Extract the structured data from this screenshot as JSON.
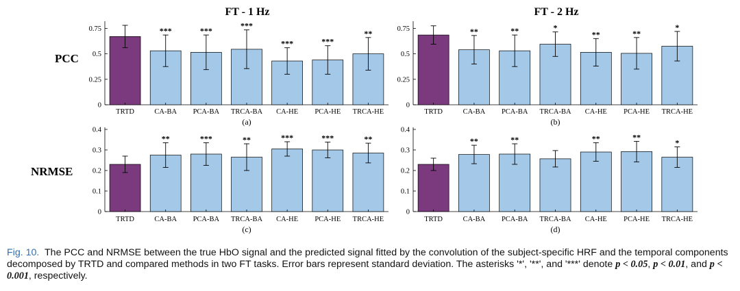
{
  "figure": {
    "column_titles": [
      "FT - 1 Hz",
      "FT - 2 Hz"
    ],
    "row_labels": [
      "PCC",
      "NRMSE"
    ],
    "colors": {
      "trtd": "#7b3a7e",
      "other": "#a4c8e8",
      "edge": "#000000"
    }
  },
  "chart_data": [
    {
      "type": "bar",
      "panel": "(a)",
      "task": "FT - 1 Hz",
      "metric": "PCC",
      "categories": [
        "TRTD",
        "CA-BA",
        "PCA-BA",
        "TRCA-BA",
        "CA-HE",
        "PCA-HE",
        "TRCA-HE"
      ],
      "values": [
        0.67,
        0.53,
        0.515,
        0.545,
        0.43,
        0.44,
        0.5
      ],
      "errors": [
        0.11,
        0.155,
        0.17,
        0.19,
        0.13,
        0.14,
        0.16
      ],
      "significance": [
        "",
        "***",
        "***",
        "***",
        "***",
        "***",
        "**"
      ],
      "ylim": [
        0,
        0.8
      ],
      "yticks": [
        "0",
        "0.25",
        "0.5",
        "0.75"
      ],
      "ytick_values": [
        0,
        0.25,
        0.5,
        0.75
      ]
    },
    {
      "type": "bar",
      "panel": "(b)",
      "task": "FT - 2 Hz",
      "metric": "PCC",
      "categories": [
        "TRTD",
        "CA-BA",
        "PCA-BA",
        "TRCA-BA",
        "CA-HE",
        "PCA-HE",
        "TRCA-HE"
      ],
      "values": [
        0.685,
        0.54,
        0.53,
        0.595,
        0.515,
        0.505,
        0.575
      ],
      "errors": [
        0.09,
        0.14,
        0.155,
        0.12,
        0.135,
        0.155,
        0.145
      ],
      "significance": [
        "",
        "**",
        "**",
        "*",
        "**",
        "**",
        "*"
      ],
      "ylim": [
        0,
        0.8
      ],
      "yticks": [
        "0",
        "0.25",
        "0.5",
        "0.75"
      ],
      "ytick_values": [
        0,
        0.25,
        0.5,
        0.75
      ]
    },
    {
      "type": "bar",
      "panel": "(c)",
      "task": "FT - 1 Hz",
      "metric": "NRMSE",
      "categories": [
        "TRTD",
        "CA-BA",
        "PCA-BA",
        "TRCA-BA",
        "CA-HE",
        "PCA-HE",
        "TRCA-HE"
      ],
      "values": [
        0.23,
        0.275,
        0.28,
        0.265,
        0.305,
        0.3,
        0.285
      ],
      "errors": [
        0.04,
        0.06,
        0.055,
        0.065,
        0.035,
        0.038,
        0.048
      ],
      "significance": [
        "",
        "**",
        "***",
        "**",
        "***",
        "***",
        "**"
      ],
      "ylim": [
        0,
        0.4
      ],
      "yticks": [
        "0",
        "0.1",
        "0.2",
        "0.3",
        "0.4"
      ],
      "ytick_values": [
        0,
        0.1,
        0.2,
        0.3,
        0.4
      ]
    },
    {
      "type": "bar",
      "panel": "(d)",
      "task": "FT - 2 Hz",
      "metric": "NRMSE",
      "categories": [
        "TRTD",
        "CA-BA",
        "PCA-BA",
        "TRCA-BA",
        "CA-HE",
        "PCA-HE",
        "TRCA-HE"
      ],
      "values": [
        0.23,
        0.278,
        0.28,
        0.257,
        0.29,
        0.292,
        0.265
      ],
      "errors": [
        0.03,
        0.045,
        0.05,
        0.04,
        0.045,
        0.05,
        0.05
      ],
      "significance": [
        "",
        "**",
        "**",
        "",
        "**",
        "**",
        "*"
      ],
      "ylim": [
        0,
        0.4
      ],
      "yticks": [
        "0",
        "0.1",
        "0.2",
        "0.3",
        "0.4"
      ],
      "ytick_values": [
        0,
        0.1,
        0.2,
        0.3,
        0.4
      ]
    }
  ],
  "caption": {
    "label": "Fig. 10.",
    "text_1": "The PCC and NRMSE between the true HbO signal and the predicted signal fitted by the convolution of the subject-specific HRF and the temporal components decomposed by TRTD and compared methods in two FT tasks. Error bars represent standard deviation. The asterisks '*', '**', and '***' denote ",
    "p1": "p < 0.05",
    "sep_1": ", ",
    "p2": "p < 0.01",
    "sep_2": ", and ",
    "p3": "p < 0.001",
    "text_2": ", respectively."
  }
}
